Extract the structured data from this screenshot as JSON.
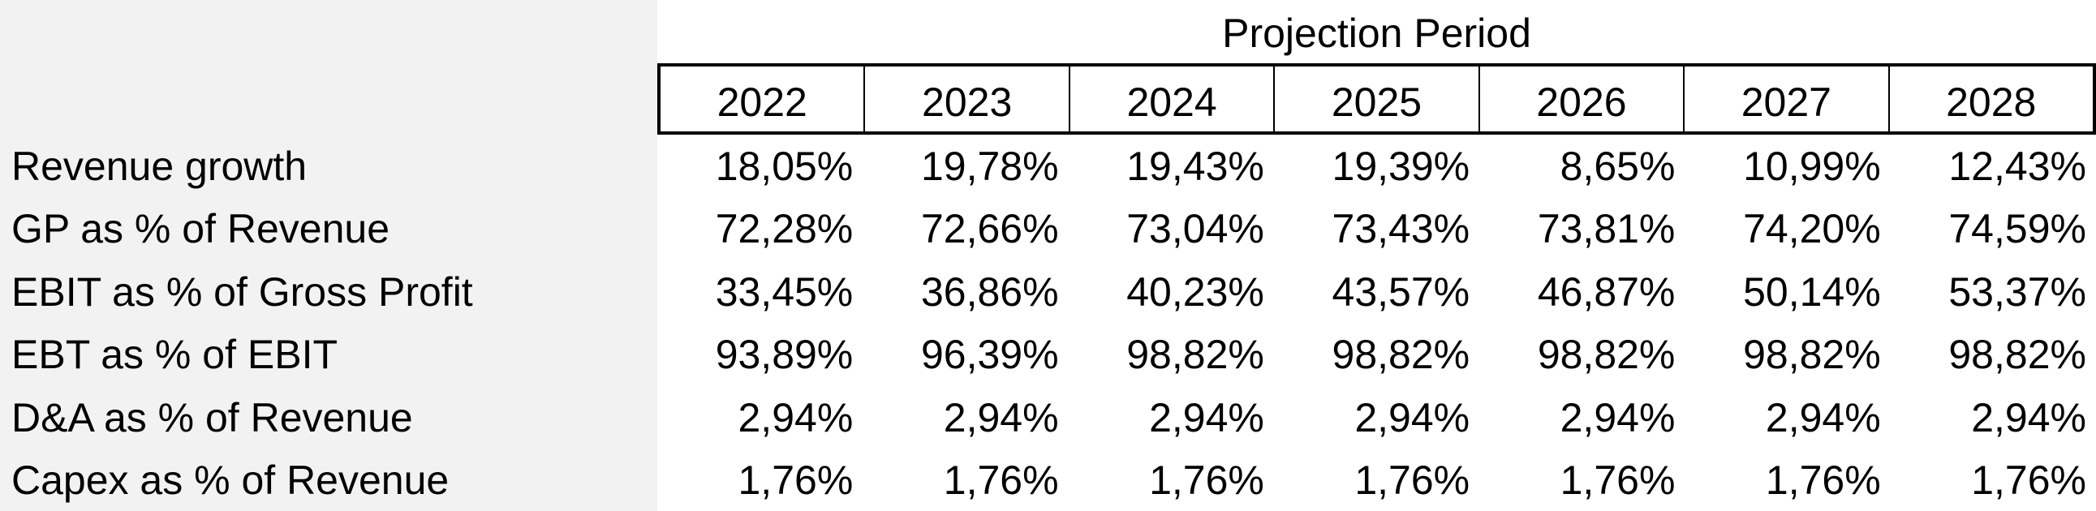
{
  "header": {
    "title": "Projection Period",
    "years": [
      "2022",
      "2023",
      "2024",
      "2025",
      "2026",
      "2027",
      "2028"
    ]
  },
  "rows": [
    {
      "label": "Revenue growth",
      "values": [
        "18,05%",
        "19,78%",
        "19,43%",
        "19,39%",
        "8,65%",
        "10,99%",
        "12,43%"
      ]
    },
    {
      "label": "GP as % of Revenue",
      "values": [
        "72,28%",
        "72,66%",
        "73,04%",
        "73,43%",
        "73,81%",
        "74,20%",
        "74,59%"
      ]
    },
    {
      "label": "EBIT as % of Gross Profit",
      "values": [
        "33,45%",
        "36,86%",
        "40,23%",
        "43,57%",
        "46,87%",
        "50,14%",
        "53,37%"
      ]
    },
    {
      "label": "EBT as % of EBIT",
      "values": [
        "93,89%",
        "96,39%",
        "98,82%",
        "98,82%",
        "98,82%",
        "98,82%",
        "98,82%"
      ]
    },
    {
      "label": "D&A as % of Revenue",
      "values": [
        "2,94%",
        "2,94%",
        "2,94%",
        "2,94%",
        "2,94%",
        "2,94%",
        "2,94%"
      ]
    },
    {
      "label": "Capex as % of Revenue",
      "values": [
        "1,76%",
        "1,76%",
        "1,76%",
        "1,76%",
        "1,76%",
        "1,76%",
        "1,76%"
      ]
    }
  ]
}
